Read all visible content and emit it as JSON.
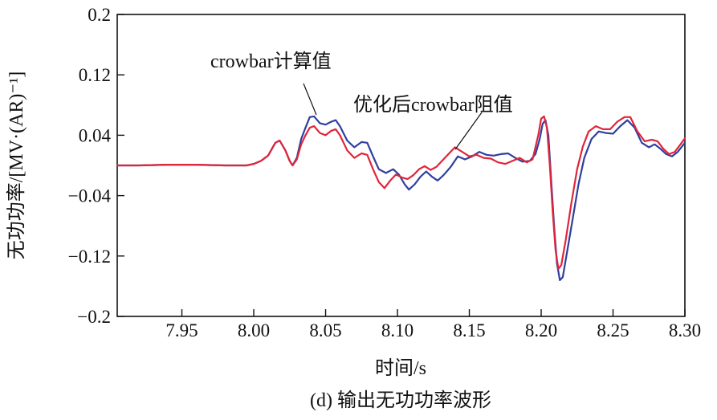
{
  "chart_data": {
    "type": "line",
    "title": "",
    "caption": "(d) 输出无功功率波形",
    "xlabel": "时间/s",
    "ylabel": "无功功率/[MV·(AR)⁻¹]",
    "xlim": [
      7.905,
      8.3
    ],
    "ylim": [
      -0.2,
      0.2
    ],
    "xticks": [
      7.95,
      8.0,
      8.05,
      8.1,
      8.15,
      8.2,
      8.25,
      8.3
    ],
    "xtick_labels": [
      "7.95",
      "8.00",
      "8.05",
      "8.10",
      "8.15",
      "8.20",
      "8.25",
      "8.30"
    ],
    "yticks": [
      0.2,
      0.12,
      0.04,
      -0.04,
      -0.12,
      -0.2
    ],
    "ytick_labels": [
      "0.2",
      "0.12",
      "0.04",
      "−0.04",
      "−0.12",
      "−0.2"
    ],
    "grid": false,
    "annotations": [
      {
        "text": "crowbar计算值",
        "series": 0
      },
      {
        "text": "优化后crowbar阻值",
        "series": 1
      }
    ],
    "series": [
      {
        "name": "crowbar计算值",
        "color": "#2e3f9e",
        "points": [
          [
            7.905,
            0.0
          ],
          [
            7.92,
            0.0
          ],
          [
            7.94,
            0.001
          ],
          [
            7.96,
            0.001
          ],
          [
            7.98,
            0.0
          ],
          [
            7.995,
            0.0
          ],
          [
            8.0,
            0.002
          ],
          [
            8.005,
            0.006
          ],
          [
            8.01,
            0.013
          ],
          [
            8.015,
            0.03
          ],
          [
            8.018,
            0.033
          ],
          [
            8.022,
            0.02
          ],
          [
            8.025,
            0.006
          ],
          [
            8.027,
            0.0
          ],
          [
            8.03,
            0.01
          ],
          [
            8.033,
            0.035
          ],
          [
            8.036,
            0.05
          ],
          [
            8.039,
            0.064
          ],
          [
            8.042,
            0.065
          ],
          [
            8.046,
            0.056
          ],
          [
            8.05,
            0.054
          ],
          [
            8.054,
            0.058
          ],
          [
            8.057,
            0.06
          ],
          [
            8.06,
            0.052
          ],
          [
            8.065,
            0.033
          ],
          [
            8.07,
            0.024
          ],
          [
            8.075,
            0.031
          ],
          [
            8.079,
            0.03
          ],
          [
            8.083,
            0.012
          ],
          [
            8.087,
            -0.005
          ],
          [
            8.092,
            -0.01
          ],
          [
            8.097,
            -0.005
          ],
          [
            8.101,
            -0.012
          ],
          [
            8.105,
            -0.025
          ],
          [
            8.108,
            -0.032
          ],
          [
            8.112,
            -0.025
          ],
          [
            8.116,
            -0.015
          ],
          [
            8.12,
            -0.008
          ],
          [
            8.124,
            -0.015
          ],
          [
            8.128,
            -0.02
          ],
          [
            8.132,
            -0.013
          ],
          [
            8.137,
            -0.002
          ],
          [
            8.142,
            0.012
          ],
          [
            8.147,
            0.008
          ],
          [
            8.152,
            0.012
          ],
          [
            8.157,
            0.018
          ],
          [
            8.162,
            0.014
          ],
          [
            8.167,
            0.013
          ],
          [
            8.172,
            0.015
          ],
          [
            8.177,
            0.016
          ],
          [
            8.182,
            0.01
          ],
          [
            8.187,
            0.005
          ],
          [
            8.192,
            0.006
          ],
          [
            8.196,
            0.015
          ],
          [
            8.199,
            0.035
          ],
          [
            8.201,
            0.055
          ],
          [
            8.203,
            0.06
          ],
          [
            8.205,
            0.04
          ],
          [
            8.207,
            -0.02
          ],
          [
            8.209,
            -0.08
          ],
          [
            8.211,
            -0.13
          ],
          [
            8.213,
            -0.152
          ],
          [
            8.215,
            -0.148
          ],
          [
            8.218,
            -0.115
          ],
          [
            8.222,
            -0.07
          ],
          [
            8.226,
            -0.025
          ],
          [
            8.23,
            0.01
          ],
          [
            8.235,
            0.035
          ],
          [
            8.24,
            0.045
          ],
          [
            8.245,
            0.043
          ],
          [
            8.25,
            0.042
          ],
          [
            8.255,
            0.052
          ],
          [
            8.26,
            0.06
          ],
          [
            8.265,
            0.05
          ],
          [
            8.27,
            0.03
          ],
          [
            8.275,
            0.024
          ],
          [
            8.279,
            0.028
          ],
          [
            8.283,
            0.022
          ],
          [
            8.287,
            0.015
          ],
          [
            8.291,
            0.012
          ],
          [
            8.295,
            0.018
          ],
          [
            8.3,
            0.03
          ]
        ]
      },
      {
        "name": "优化后crowbar阻值",
        "color": "#e0243a",
        "points": [
          [
            7.905,
            0.0
          ],
          [
            7.92,
            0.0
          ],
          [
            7.94,
            0.001
          ],
          [
            7.96,
            0.001
          ],
          [
            7.98,
            0.0
          ],
          [
            7.995,
            0.0
          ],
          [
            8.0,
            0.002
          ],
          [
            8.005,
            0.006
          ],
          [
            8.01,
            0.013
          ],
          [
            8.015,
            0.03
          ],
          [
            8.018,
            0.033
          ],
          [
            8.022,
            0.02
          ],
          [
            8.025,
            0.006
          ],
          [
            8.027,
            0.0
          ],
          [
            8.03,
            0.008
          ],
          [
            8.033,
            0.028
          ],
          [
            8.036,
            0.04
          ],
          [
            8.039,
            0.05
          ],
          [
            8.042,
            0.052
          ],
          [
            8.046,
            0.043
          ],
          [
            8.05,
            0.04
          ],
          [
            8.054,
            0.046
          ],
          [
            8.057,
            0.048
          ],
          [
            8.06,
            0.04
          ],
          [
            8.065,
            0.02
          ],
          [
            8.07,
            0.01
          ],
          [
            8.075,
            0.016
          ],
          [
            8.079,
            0.014
          ],
          [
            8.083,
            -0.005
          ],
          [
            8.087,
            -0.022
          ],
          [
            8.091,
            -0.03
          ],
          [
            8.095,
            -0.02
          ],
          [
            8.099,
            -0.012
          ],
          [
            8.103,
            -0.016
          ],
          [
            8.107,
            -0.018
          ],
          [
            8.111,
            -0.013
          ],
          [
            8.115,
            -0.005
          ],
          [
            8.119,
            -0.001
          ],
          [
            8.123,
            -0.006
          ],
          [
            8.127,
            -0.002
          ],
          [
            8.131,
            0.006
          ],
          [
            8.135,
            0.014
          ],
          [
            8.14,
            0.024
          ],
          [
            8.145,
            0.018
          ],
          [
            8.15,
            0.012
          ],
          [
            8.155,
            0.014
          ],
          [
            8.16,
            0.01
          ],
          [
            8.165,
            0.009
          ],
          [
            8.17,
            0.004
          ],
          [
            8.175,
            0.002
          ],
          [
            8.18,
            0.006
          ],
          [
            8.185,
            0.01
          ],
          [
            8.19,
            0.004
          ],
          [
            8.194,
            0.008
          ],
          [
            8.198,
            0.04
          ],
          [
            8.2,
            0.062
          ],
          [
            8.202,
            0.065
          ],
          [
            8.204,
            0.05
          ],
          [
            8.206,
            0.0
          ],
          [
            8.208,
            -0.06
          ],
          [
            8.21,
            -0.112
          ],
          [
            8.212,
            -0.137
          ],
          [
            8.214,
            -0.132
          ],
          [
            8.217,
            -0.1
          ],
          [
            8.221,
            -0.05
          ],
          [
            8.225,
            -0.005
          ],
          [
            8.229,
            0.025
          ],
          [
            8.233,
            0.045
          ],
          [
            8.238,
            0.052
          ],
          [
            8.243,
            0.048
          ],
          [
            8.248,
            0.048
          ],
          [
            8.253,
            0.058
          ],
          [
            8.258,
            0.064
          ],
          [
            8.262,
            0.064
          ],
          [
            8.267,
            0.045
          ],
          [
            8.272,
            0.032
          ],
          [
            8.277,
            0.034
          ],
          [
            8.281,
            0.032
          ],
          [
            8.285,
            0.022
          ],
          [
            8.289,
            0.015
          ],
          [
            8.293,
            0.018
          ],
          [
            8.297,
            0.028
          ],
          [
            8.3,
            0.036
          ]
        ]
      }
    ]
  }
}
